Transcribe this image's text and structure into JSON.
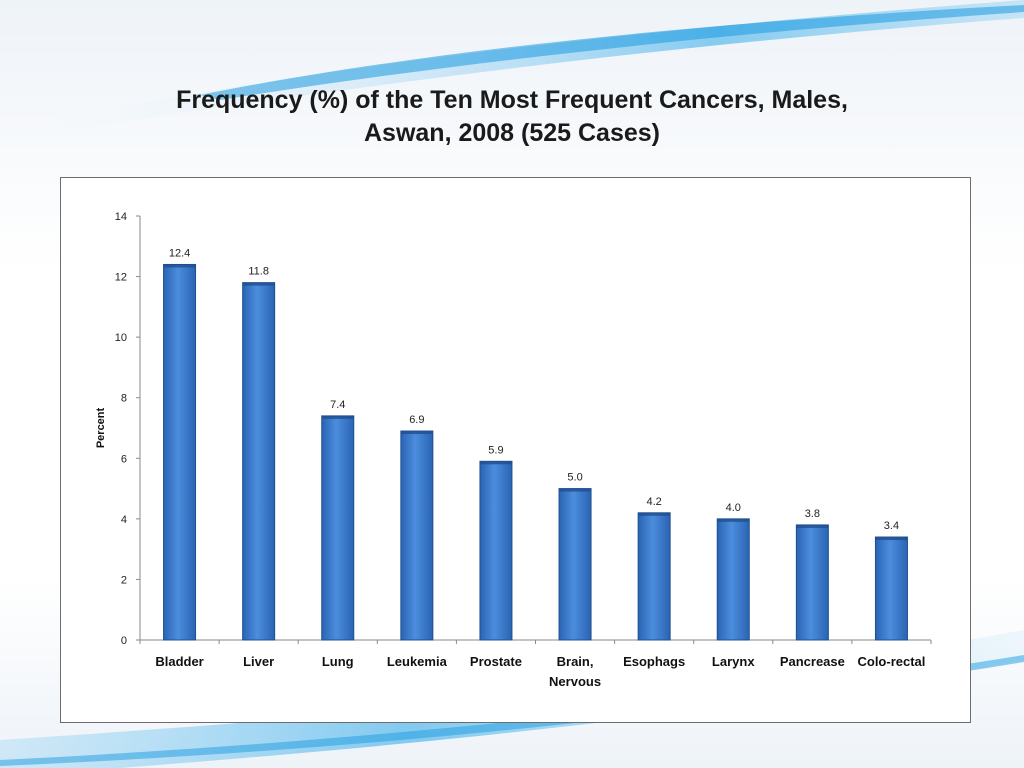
{
  "chart_data": {
    "type": "bar",
    "title": "Frequency (%) of the Ten Most Frequent Cancers, Males, Aswan, 2008 (525 Cases)",
    "title_lines": [
      "Frequency (%) of the Ten Most Frequent Cancers, Males,",
      "Aswan, 2008 (525 Cases)"
    ],
    "ylabel": "Percent",
    "xlabel": "",
    "ylim": [
      0,
      14
    ],
    "yticks": [
      0,
      2,
      4,
      6,
      8,
      10,
      12,
      14
    ],
    "categories": [
      "Bladder",
      "Liver",
      "Lung",
      "Leukemia",
      "Prostate",
      "Brain, Nervous",
      "Esophags",
      "Larynx",
      "Pancrease",
      "Colo-rectal"
    ],
    "category_lines": [
      [
        "Bladder"
      ],
      [
        "Liver"
      ],
      [
        "Lung"
      ],
      [
        "Leukemia"
      ],
      [
        "Prostate"
      ],
      [
        "Brain,",
        "Nervous"
      ],
      [
        "Esophags"
      ],
      [
        "Larynx"
      ],
      [
        "Pancrease"
      ],
      [
        "Colo-rectal"
      ]
    ],
    "values": [
      12.4,
      11.8,
      7.4,
      6.9,
      5.9,
      5.0,
      4.2,
      4.0,
      3.8,
      3.4
    ],
    "value_labels": [
      "12.4",
      "11.8",
      "7.4",
      "6.9",
      "5.9",
      "5.0",
      "4.2",
      "4.0",
      "3.8",
      "3.4"
    ],
    "bar_color": "#3e7fcf",
    "bar_edge_color": "#1f4f8f",
    "grid": false,
    "legend": "none"
  }
}
